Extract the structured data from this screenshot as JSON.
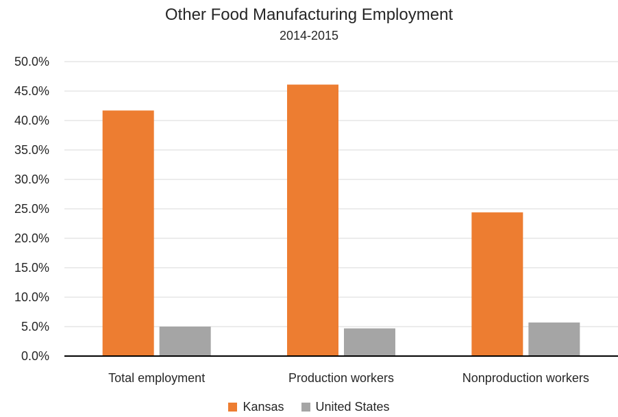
{
  "chart_data": {
    "type": "bar",
    "title": "Other Food Manufacturing Employment",
    "subtitle": "2014-2015",
    "categories": [
      "Total employment",
      "Production workers",
      "Nonproduction workers"
    ],
    "series": [
      {
        "name": "Kansas",
        "values": [
          41.7,
          46.1,
          24.4
        ],
        "color": "#ED7D31"
      },
      {
        "name": "United States",
        "values": [
          5.0,
          4.7,
          5.7
        ],
        "color": "#A5A5A5"
      }
    ],
    "yticks": [
      "0.0%",
      "5.0%",
      "10.0%",
      "15.0%",
      "20.0%",
      "25.0%",
      "30.0%",
      "35.0%",
      "40.0%",
      "45.0%",
      "50.0%"
    ],
    "ylim": [
      0,
      50
    ],
    "y_unit": "%",
    "gridlines": true,
    "legend_position": "bottom",
    "gridline_color": "#D9D9D9",
    "axis_color": "#000000"
  }
}
